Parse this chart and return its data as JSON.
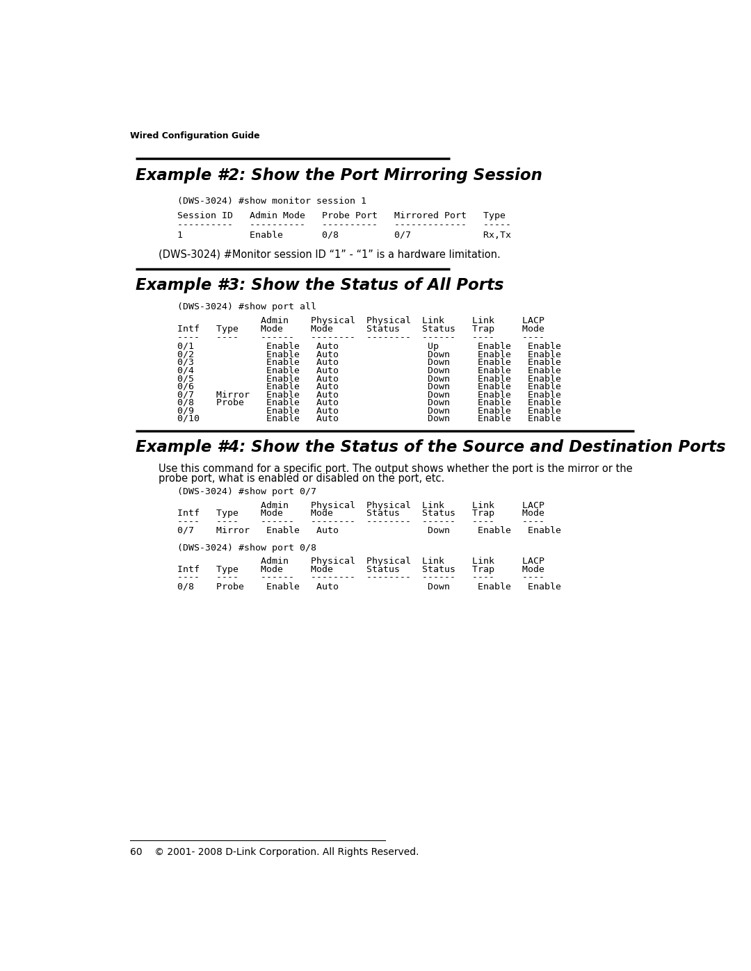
{
  "page_bg": "#ffffff",
  "header_text": "Wired Configuration Guide",
  "footer_text": "60    © 2001- 2008 D-Link Corporation. All Rights Reserved.",
  "ex2_title": "Example #2: Show the Port Mirroring Session",
  "ex2_cmd": "(DWS-3024) #show monitor session 1",
  "ex2_note": "(DWS-3024) #Monitor session ID “1” - “1” is a hardware limitation.",
  "ex3_title": "Example #3: Show the Status of All Ports",
  "ex3_cmd": "(DWS-3024) #show port all",
  "ex3_table_rows": [
    "0/1             Enable   Auto                Up       Enable   Enable",
    "0/2             Enable   Auto                Down     Enable   Enable",
    "0/3             Enable   Auto                Down     Enable   Enable",
    "0/4             Enable   Auto                Down     Enable   Enable",
    "0/5             Enable   Auto                Down     Enable   Enable",
    "0/6             Enable   Auto                Down     Enable   Enable",
    "0/7    Mirror   Enable   Auto                Down     Enable   Enable",
    "0/8    Probe    Enable   Auto                Down     Enable   Enable",
    "0/9             Enable   Auto                Down     Enable   Enable",
    "0/10            Enable   Auto                Down     Enable   Enable"
  ],
  "ex4_title": "Example #4: Show the Status of the Source and Destination Ports",
  "ex4_desc1": "Use this command for a specific port. The output shows whether the port is the mirror or the",
  "ex4_desc2": "probe port, what is enabled or disabled on the port, etc.",
  "ex4_cmd1": "(DWS-3024) #show port 0/7",
  "ex4_table1_row": "0/7    Mirror   Enable   Auto                Down     Enable   Enable",
  "ex4_cmd2": "(DWS-3024) #show port 0/8",
  "ex4_table2_row": "0/8    Probe    Enable   Auto                Down     Enable   Enable"
}
